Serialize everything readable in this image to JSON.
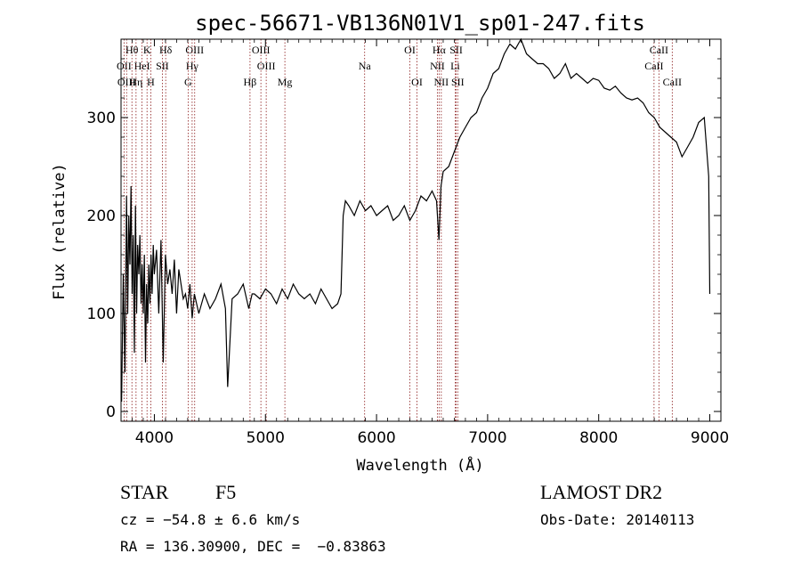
{
  "chart_data": {
    "type": "line",
    "title": "spec-56671-VB136N01V1_sp01-247.fits",
    "xlabel": "Wavelength (Å)",
    "ylabel": "Flux (relative)",
    "xlim": [
      3700,
      9100
    ],
    "ylim": [
      -10,
      380
    ],
    "xticks": [
      4000,
      5000,
      6000,
      7000,
      8000,
      9000
    ],
    "yticks": [
      0,
      100,
      200,
      300
    ],
    "grid": false,
    "legend": "none",
    "line_color": "#000000",
    "marker_color": "#8b1a1a",
    "series": [
      {
        "x": [
          3705,
          3720,
          3735,
          3750,
          3760,
          3770,
          3780,
          3790,
          3800,
          3810,
          3820,
          3830,
          3840,
          3850,
          3860,
          3870,
          3880,
          3890,
          3900,
          3910,
          3920,
          3930,
          3940,
          3950,
          3960,
          3970,
          3980,
          3990,
          4000,
          4020,
          4040,
          4060,
          4080,
          4100,
          4120,
          4140,
          4160,
          4180,
          4200,
          4220,
          4240,
          4260,
          4280,
          4300,
          4320,
          4340,
          4360,
          4380,
          4400,
          4450,
          4500,
          4550,
          4600,
          4640,
          4660,
          4700,
          4750,
          4800,
          4850,
          4880,
          4900,
          4950,
          5000,
          5050,
          5100,
          5150,
          5200,
          5250,
          5300,
          5350,
          5400,
          5450,
          5500,
          5550,
          5600,
          5650,
          5680,
          5700,
          5720,
          5750,
          5800,
          5850,
          5900,
          5950,
          6000,
          6050,
          6100,
          6150,
          6200,
          6250,
          6300,
          6350,
          6400,
          6450,
          6500,
          6540,
          6562,
          6580,
          6600,
          6650,
          6700,
          6750,
          6800,
          6850,
          6900,
          6950,
          7000,
          7050,
          7100,
          7150,
          7200,
          7250,
          7300,
          7350,
          7400,
          7450,
          7500,
          7550,
          7600,
          7650,
          7700,
          7750,
          7800,
          7850,
          7900,
          7950,
          8000,
          8050,
          8100,
          8150,
          8200,
          8250,
          8300,
          8350,
          8400,
          8450,
          8500,
          8550,
          8600,
          8650,
          8700,
          8750,
          8800,
          8850,
          8900,
          8950,
          8990,
          9000
        ],
        "y": [
          10,
          140,
          40,
          220,
          100,
          200,
          150,
          230,
          120,
          180,
          60,
          210,
          100,
          170,
          140,
          180,
          110,
          150,
          100,
          160,
          50,
          130,
          90,
          150,
          110,
          160,
          120,
          170,
          140,
          165,
          100,
          175,
          50,
          160,
          130,
          145,
          120,
          155,
          100,
          145,
          130,
          115,
          120,
          105,
          130,
          95,
          120,
          110,
          100,
          120,
          105,
          115,
          130,
          105,
          25,
          115,
          120,
          130,
          105,
          120,
          120,
          115,
          125,
          120,
          110,
          125,
          115,
          130,
          120,
          115,
          120,
          110,
          125,
          115,
          105,
          110,
          120,
          200,
          215,
          210,
          200,
          215,
          205,
          210,
          200,
          205,
          210,
          195,
          200,
          210,
          195,
          205,
          220,
          215,
          225,
          215,
          175,
          230,
          245,
          250,
          265,
          280,
          290,
          300,
          305,
          320,
          330,
          345,
          350,
          365,
          375,
          370,
          380,
          365,
          360,
          355,
          355,
          350,
          340,
          345,
          355,
          340,
          345,
          340,
          335,
          340,
          338,
          330,
          328,
          332,
          325,
          320,
          318,
          320,
          315,
          305,
          300,
          290,
          285,
          280,
          275,
          260,
          270,
          280,
          295,
          300,
          240,
          120
        ]
      }
    ],
    "spectral_lines": [
      {
        "label": "Hθ",
        "x": 3798,
        "row": 0
      },
      {
        "label": "K",
        "x": 3934,
        "row": 0
      },
      {
        "label": "Hδ",
        "x": 4102,
        "row": 0
      },
      {
        "label": "OIII",
        "x": 4363,
        "row": 0
      },
      {
        "label": "OIII",
        "x": 4959,
        "row": 0
      },
      {
        "label": "OI",
        "x": 6300,
        "row": 0
      },
      {
        "label": "Hα",
        "x": 6563,
        "row": 0
      },
      {
        "label": "SII",
        "x": 6717,
        "row": 0
      },
      {
        "label": "CaII",
        "x": 8542,
        "row": 0
      },
      {
        "label": "OII",
        "x": 3727,
        "row": 1
      },
      {
        "label": "HeI",
        "x": 3889,
        "row": 1
      },
      {
        "label": "SII",
        "x": 4072,
        "row": 1
      },
      {
        "label": "Hγ",
        "x": 4340,
        "row": 1
      },
      {
        "label": "OIII",
        "x": 5007,
        "row": 1
      },
      {
        "label": "Na",
        "x": 5893,
        "row": 1
      },
      {
        "label": "NII",
        "x": 6548,
        "row": 1
      },
      {
        "label": "Li",
        "x": 6708,
        "row": 1
      },
      {
        "label": "CaII",
        "x": 8498,
        "row": 1
      },
      {
        "label": "OIII",
        "x": 3750,
        "row": 2
      },
      {
        "label": "Hη",
        "x": 3835,
        "row": 2
      },
      {
        "label": "H",
        "x": 3968,
        "row": 2
      },
      {
        "label": "G",
        "x": 4304,
        "row": 2
      },
      {
        "label": "Hβ",
        "x": 4861,
        "row": 2
      },
      {
        "label": "Mg",
        "x": 5175,
        "row": 2
      },
      {
        "label": "OI",
        "x": 6364,
        "row": 2
      },
      {
        "label": "NII",
        "x": 6583,
        "row": 2
      },
      {
        "label": "SII",
        "x": 6731,
        "row": 2
      },
      {
        "label": "CaII",
        "x": 8662,
        "row": 2
      }
    ]
  },
  "info": {
    "class": "STAR",
    "subclass": "F5",
    "survey": "LAMOST DR2",
    "cz": "cz = −54.8 ± 6.6 km/s",
    "obs_date": "Obs-Date: 20140113",
    "coords": "RA = 136.30900, DEC =  −0.83863"
  }
}
